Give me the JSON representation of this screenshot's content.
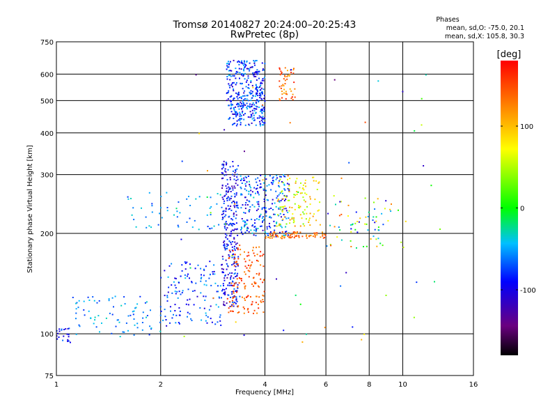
{
  "chart_data": {
    "type": "scatter",
    "title": "Tromsø 20140827 20:24:00–20:25:43",
    "subtitle": "RwPretec (8p)",
    "xlabel": "Frequency [MHz]",
    "ylabel": "Stationary phase Virtual Height [km]",
    "xscale": "log",
    "yscale": "log",
    "xlim": [
      1,
      16
    ],
    "ylim": [
      75,
      750
    ],
    "xticks": [
      1,
      2,
      4,
      6,
      8,
      10,
      16
    ],
    "xtick_labels": [
      "1",
      "2",
      "4",
      "6",
      "8",
      "10",
      "16"
    ],
    "yticks": [
      75,
      100,
      200,
      300,
      400,
      500,
      600,
      750
    ],
    "ytick_labels": [
      "75",
      "100",
      "200",
      "300",
      "400",
      "500",
      "600",
      "750"
    ],
    "grid": true,
    "stats": {
      "heading": "Phases",
      "line_o": "mean, sd,O: -75.0, 20.1",
      "line_x": "mean, sd,X: 105.8, 30.3"
    },
    "colorbar": {
      "label": "[deg]",
      "range": [
        -180,
        180
      ],
      "ticks": [
        100,
        0,
        -100
      ],
      "tick_labels": [
        "100",
        "0",
        "-100"
      ]
    },
    "clusters": [
      {
        "f": [
          1.0,
          1.1
        ],
        "h": [
          94,
          104
        ],
        "phase": [
          -110,
          -60
        ],
        "n": 22
      },
      {
        "f": [
          1.1,
          2.0
        ],
        "h": [
          98,
          130
        ],
        "phase": [
          -80,
          -30
        ],
        "n": 80
      },
      {
        "f": [
          2.0,
          3.0
        ],
        "h": [
          105,
          165
        ],
        "phase": [
          -110,
          -40
        ],
        "n": 140
      },
      {
        "f": [
          1.6,
          3.0
        ],
        "h": [
          205,
          265
        ],
        "phase": [
          -80,
          -30
        ],
        "n": 55
      },
      {
        "f": [
          3.0,
          3.35
        ],
        "h": [
          120,
          330
        ],
        "phase": [
          -130,
          -60
        ],
        "n": 300
      },
      {
        "f": [
          3.4,
          4.7
        ],
        "h": [
          195,
          300
        ],
        "phase": [
          -120,
          -30
        ],
        "n": 260
      },
      {
        "f": [
          3.1,
          4.0
        ],
        "h": [
          420,
          660
        ],
        "phase": [
          -120,
          -40
        ],
        "n": 380
      },
      {
        "f": [
          4.4,
          4.9
        ],
        "h": [
          500,
          630
        ],
        "phase": [
          100,
          170
        ],
        "n": 50
      },
      {
        "f": [
          3.1,
          4.0
        ],
        "h": [
          115,
          185
        ],
        "phase": [
          120,
          170
        ],
        "n": 140
      },
      {
        "f": [
          4.0,
          6.0
        ],
        "h": [
          193,
          202
        ],
        "phase": [
          110,
          160
        ],
        "n": 80
      },
      {
        "f": [
          4.3,
          5.8
        ],
        "h": [
          210,
          295
        ],
        "phase": [
          30,
          120
        ],
        "n": 110
      },
      {
        "f": [
          6.0,
          10.0
        ],
        "h": [
          180,
          260
        ],
        "phase": [
          -120,
          150
        ],
        "n": 70
      },
      {
        "f": [
          2.2,
          13.0
        ],
        "h": [
          90,
          620
        ],
        "phase": [
          -150,
          170
        ],
        "n": 60
      }
    ]
  }
}
